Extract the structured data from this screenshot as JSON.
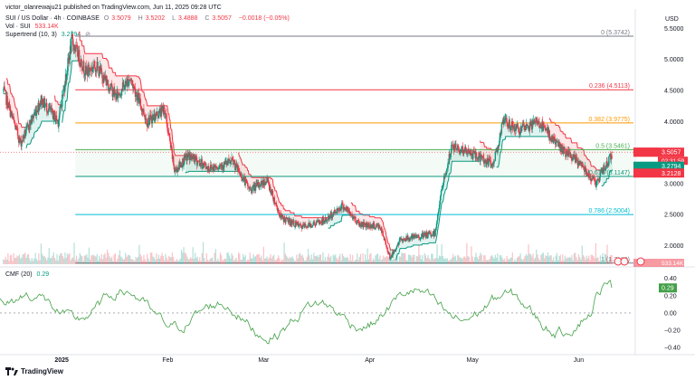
{
  "header": {
    "author_line": "victor_olanrewaju21 published on TradingView.com, Jun 11, 2025 09:28 UTC",
    "symbol_title": "SUI / US Dollar · 4h · COINBASE",
    "o_label": "O",
    "o": "3.5079",
    "h_label": "H",
    "h": "3.5202",
    "l_label": "L",
    "l": "3.4888",
    "c_label": "C",
    "c": "3.5057",
    "change": "−0.0018 (−0.05%)",
    "vol_label": "Vol · SUI",
    "vol": "533.14K",
    "supertrend_label": "Supertrend (10, 3)",
    "supertrend": "3.2794",
    "cmf_label": "CMF (20)",
    "cmf": "0.29"
  },
  "axis": {
    "currency": "USD"
  },
  "footer": {
    "brand": "TradingView"
  },
  "colors": {
    "up": "#089981",
    "down": "#f23645",
    "st_up": "#089981",
    "st_down": "#f23645",
    "cmf_line": "#43a047",
    "fib_0": "#787b86",
    "fib_236": "#f23645",
    "fib_382": "#ff9800",
    "fib_5": "#4caf50",
    "fib_618": "#089981",
    "fib_786": "#00bcd4",
    "fib_1": "#787b86"
  },
  "chart_data": [
    {
      "type": "candlestick",
      "title": "SUI / US Dollar · 4h · COINBASE",
      "x_ticks": [
        "2025",
        "Feb",
        "Mar",
        "Apr",
        "May",
        "Jun"
      ],
      "y_ticks": [
        5.5,
        5.0,
        4.5,
        4.0,
        3.5,
        3.0,
        2.5,
        2.0
      ],
      "ylim": [
        1.7,
        5.55
      ],
      "anchors": [
        {
          "date": "2024-12-15",
          "price": 4.5
        },
        {
          "date": "2024-12-20",
          "price": 3.65
        },
        {
          "date": "2024-12-26",
          "price": 4.35
        },
        {
          "date": "2024-12-31",
          "price": 4.0
        },
        {
          "date": "2025-01-04",
          "price": 5.3
        },
        {
          "date": "2025-01-08",
          "price": 4.8
        },
        {
          "date": "2025-01-11",
          "price": 4.9
        },
        {
          "date": "2025-01-17",
          "price": 4.4
        },
        {
          "date": "2025-01-21",
          "price": 4.7
        },
        {
          "date": "2025-01-26",
          "price": 4.0
        },
        {
          "date": "2025-01-31",
          "price": 4.2
        },
        {
          "date": "2025-02-03",
          "price": 3.2
        },
        {
          "date": "2025-02-07",
          "price": 3.45
        },
        {
          "date": "2025-02-13",
          "price": 3.25
        },
        {
          "date": "2025-02-20",
          "price": 3.35
        },
        {
          "date": "2025-02-25",
          "price": 2.9
        },
        {
          "date": "2025-03-02",
          "price": 3.05
        },
        {
          "date": "2025-03-06",
          "price": 2.45
        },
        {
          "date": "2025-03-12",
          "price": 2.3
        },
        {
          "date": "2025-03-19",
          "price": 2.4
        },
        {
          "date": "2025-03-24",
          "price": 2.65
        },
        {
          "date": "2025-03-29",
          "price": 2.35
        },
        {
          "date": "2025-04-04",
          "price": 2.3
        },
        {
          "date": "2025-04-07",
          "price": 1.8
        },
        {
          "date": "2025-04-10",
          "price": 2.1
        },
        {
          "date": "2025-04-16",
          "price": 2.15
        },
        {
          "date": "2025-04-20",
          "price": 2.2
        },
        {
          "date": "2025-04-22",
          "price": 2.9
        },
        {
          "date": "2025-04-25",
          "price": 3.6
        },
        {
          "date": "2025-05-02",
          "price": 3.45
        },
        {
          "date": "2025-05-07",
          "price": 3.3
        },
        {
          "date": "2025-05-10",
          "price": 4.0
        },
        {
          "date": "2025-05-15",
          "price": 3.85
        },
        {
          "date": "2025-05-20",
          "price": 4.0
        },
        {
          "date": "2025-05-24",
          "price": 3.75
        },
        {
          "date": "2025-05-28",
          "price": 3.5
        },
        {
          "date": "2025-06-02",
          "price": 3.3
        },
        {
          "date": "2025-06-06",
          "price": 3.0
        },
        {
          "date": "2025-06-11",
          "price": 3.5
        }
      ],
      "fib_levels": [
        {
          "ratio": "0",
          "price": 5.3742,
          "label": "0 (5.3742)"
        },
        {
          "ratio": "0.236",
          "price": 4.5113,
          "label": "0.236 (4.5113)"
        },
        {
          "ratio": "0.382",
          "price": 3.9775,
          "label": "0.382 (3.9775)"
        },
        {
          "ratio": "0.5",
          "price": 3.5461,
          "label": "0.5 (3.5461)"
        },
        {
          "ratio": "0.618",
          "price": 3.1147,
          "label": "0.618 (3.1147)"
        },
        {
          "ratio": "0.786",
          "price": 2.5004,
          "label": "0.786 (2.5004)"
        },
        {
          "ratio": "1",
          "price": 1.718,
          "label": "1 (1.7180)"
        }
      ],
      "price_labels": [
        {
          "name": "SUIUSD",
          "value": "3.5057",
          "sub": "02:31:59"
        },
        {
          "name": "supertrend",
          "value": "3.2794"
        },
        {
          "name": "fib",
          "value": "3.2128"
        }
      ],
      "volume_label": "533.14K"
    },
    {
      "type": "line",
      "title": "CMF (20)",
      "y_ticks": [
        0.4,
        0.2,
        0.0,
        -0.2,
        -0.4
      ],
      "y_tick_labels": [
        "0.40",
        "0.20",
        "0.00",
        "−0.20",
        "−0.40"
      ],
      "ylim": [
        -0.44,
        0.46
      ],
      "last_value": "0.29"
    }
  ]
}
